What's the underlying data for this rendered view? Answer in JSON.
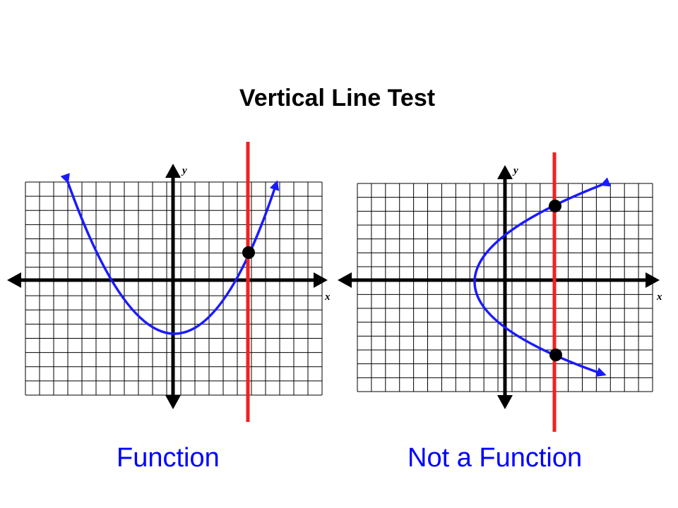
{
  "title": "Vertical Line Test",
  "colors": {
    "curve": "#1a1aff",
    "test_line": "#ee2222",
    "axes": "#000000",
    "grid": "#000000",
    "caption": "#0000ff"
  },
  "graphs": [
    {
      "caption": "Function",
      "x_axis_label": "x",
      "y_axis_label": "y",
      "curve": "upward parabola",
      "intersection_count": 1
    },
    {
      "caption": "Not a Function",
      "x_axis_label": "x",
      "y_axis_label": "y",
      "curve": "sideways parabola opening right",
      "intersection_count": 2
    }
  ]
}
